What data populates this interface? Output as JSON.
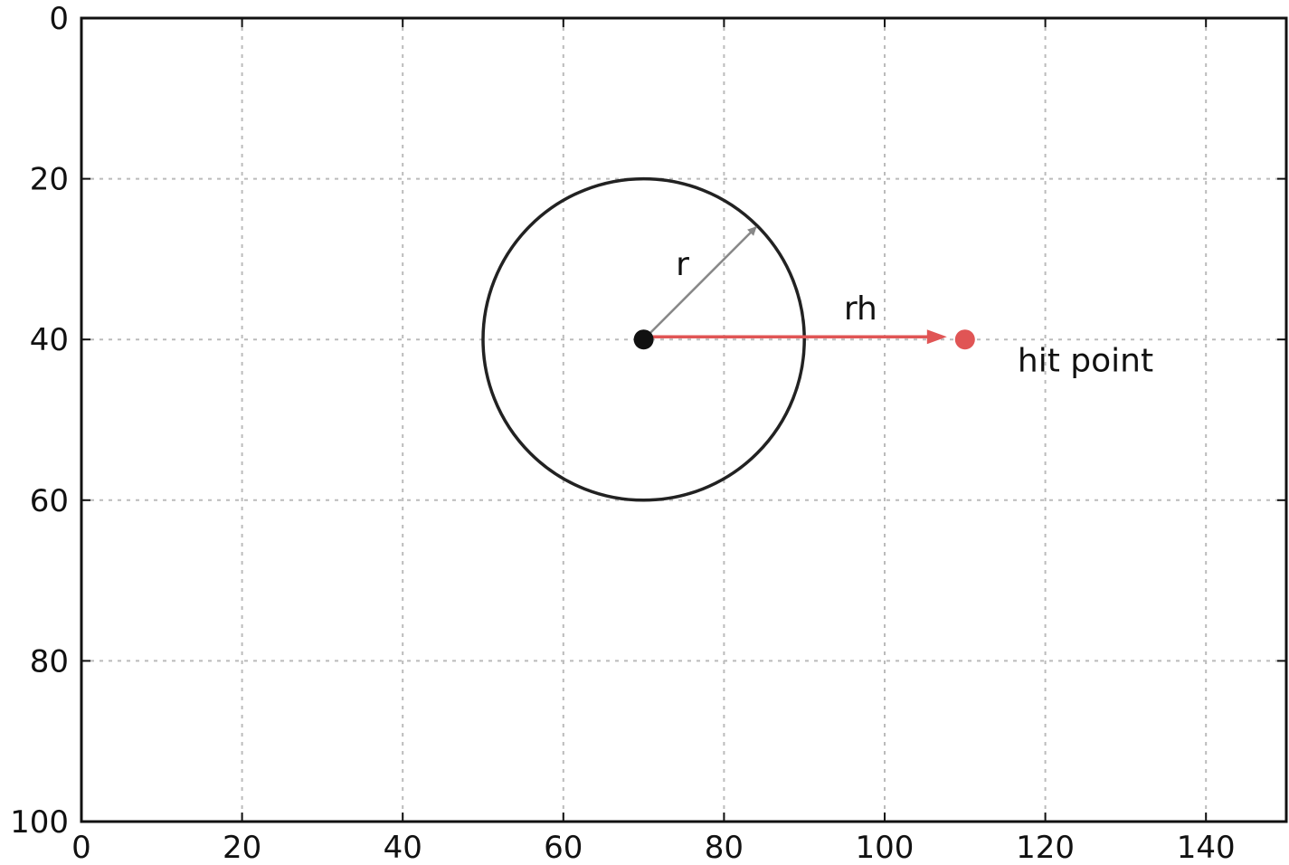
{
  "chart_data": {
    "type": "scatter",
    "title": "",
    "xlabel": "",
    "ylabel": "",
    "xlim": [
      0,
      150
    ],
    "ylim": [
      100,
      0
    ],
    "y_inverted": true,
    "grid": true,
    "x_ticks": [
      0,
      20,
      40,
      60,
      80,
      100,
      120,
      140
    ],
    "y_ticks": [
      0,
      20,
      40,
      60,
      80,
      100
    ],
    "circle": {
      "cx": 70,
      "cy": 40,
      "r": 20,
      "color": "#222222"
    },
    "center_point": {
      "x": 70,
      "y": 40,
      "color": "#111111"
    },
    "radius_arrow": {
      "from": [
        70,
        40
      ],
      "to": [
        84,
        26
      ],
      "label": "r",
      "label_pos": [
        74,
        32
      ],
      "color": "#888888"
    },
    "hit_vector": {
      "from": [
        70,
        40
      ],
      "to": [
        110,
        40
      ],
      "label": "rh",
      "label_pos": [
        97,
        37.5
      ],
      "color": "#e05555"
    },
    "hit_point": {
      "x": 110,
      "y": 40,
      "label": "hit point",
      "label_pos": [
        125,
        44
      ],
      "color": "#e05555"
    }
  }
}
